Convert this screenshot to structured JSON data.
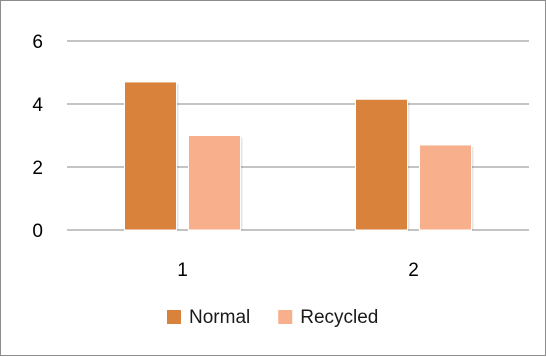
{
  "chart_data": {
    "type": "bar",
    "categories": [
      "1",
      "2"
    ],
    "series": [
      {
        "name": "Normal",
        "values": [
          4.7,
          4.15
        ],
        "color": "#D8823C"
      },
      {
        "name": "Recycled",
        "values": [
          3.0,
          2.7
        ],
        "color": "#F7B08B"
      }
    ],
    "ylim": [
      0,
      6
    ],
    "yticks": [
      "0",
      "2",
      "4",
      "6"
    ],
    "grid": true,
    "legend_position": "bottom"
  }
}
